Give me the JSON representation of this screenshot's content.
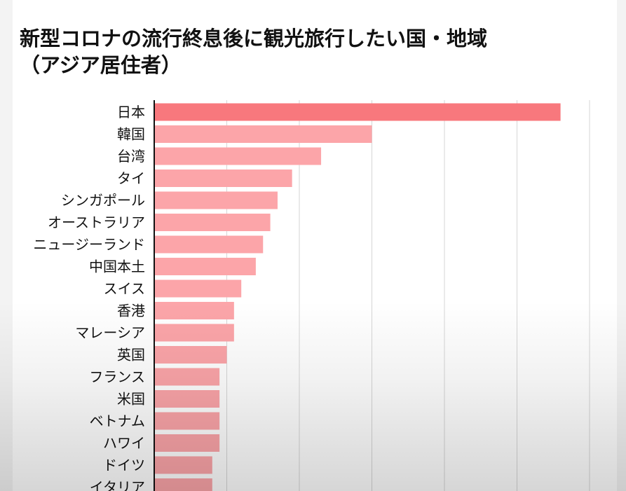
{
  "chart_data": {
    "type": "bar",
    "orientation": "horizontal",
    "title": "新型コロナの流行終息後に観光旅行したい国・地域",
    "subtitle": "（アジア居住者）",
    "categories": [
      "日本",
      "韓国",
      "台湾",
      "タイ",
      "シンガポール",
      "オーストラリア",
      "ニュージーランド",
      "中国本土",
      "スイス",
      "香港",
      "マレーシア",
      "英国",
      "フランス",
      "米国",
      "ベトナム",
      "ハワイ",
      "ドイツ",
      "イタリア"
    ],
    "values": [
      56,
      30,
      23,
      19,
      17,
      16,
      15,
      14,
      12,
      11,
      11,
      10,
      9,
      9,
      9,
      9,
      8,
      8
    ],
    "xlim": [
      0,
      60
    ],
    "grid": true,
    "xlabel": "",
    "ylabel": "",
    "colors": {
      "highlight": "#f8787d",
      "bar": "#fca5a9",
      "grid": "#d6d6d6",
      "axis": "#111111",
      "text": "#111111"
    }
  }
}
